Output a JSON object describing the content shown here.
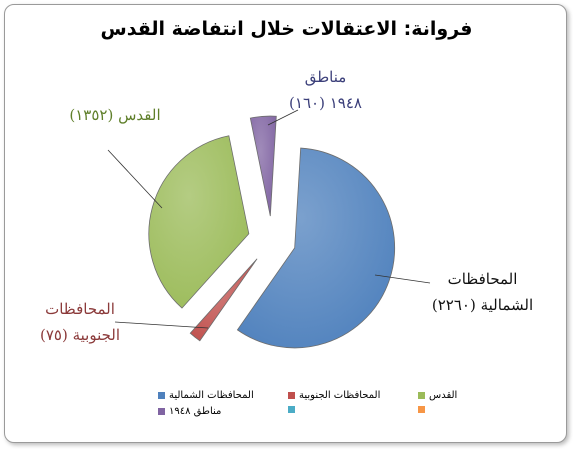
{
  "chart_data": {
    "type": "pie",
    "title": "فروانة: الاعتقالات خلال انتفاضة القدس",
    "categories": [
      "المحافظات الشمالية",
      "المحافظات الجنوبية",
      "القدس",
      "مناطق ١٩٤٨",
      null,
      null
    ],
    "values": [
      2260,
      75,
      1352,
      160,
      0,
      0
    ],
    "value_labels": [
      "(٢٢٦٠)",
      "(٧٥)",
      "(١٣٥٢)",
      "(١٦٠)",
      null,
      null
    ],
    "colors": [
      "#4f81bd",
      "#c0504d",
      "#9bbb59",
      "#8064a2",
      "#4bacc6",
      "#f79646"
    ],
    "label_colors": [
      "#111111",
      "#8b3a3a",
      "#5f7f2a",
      "#3b3f7a",
      "#111111",
      "#111111"
    ]
  }
}
